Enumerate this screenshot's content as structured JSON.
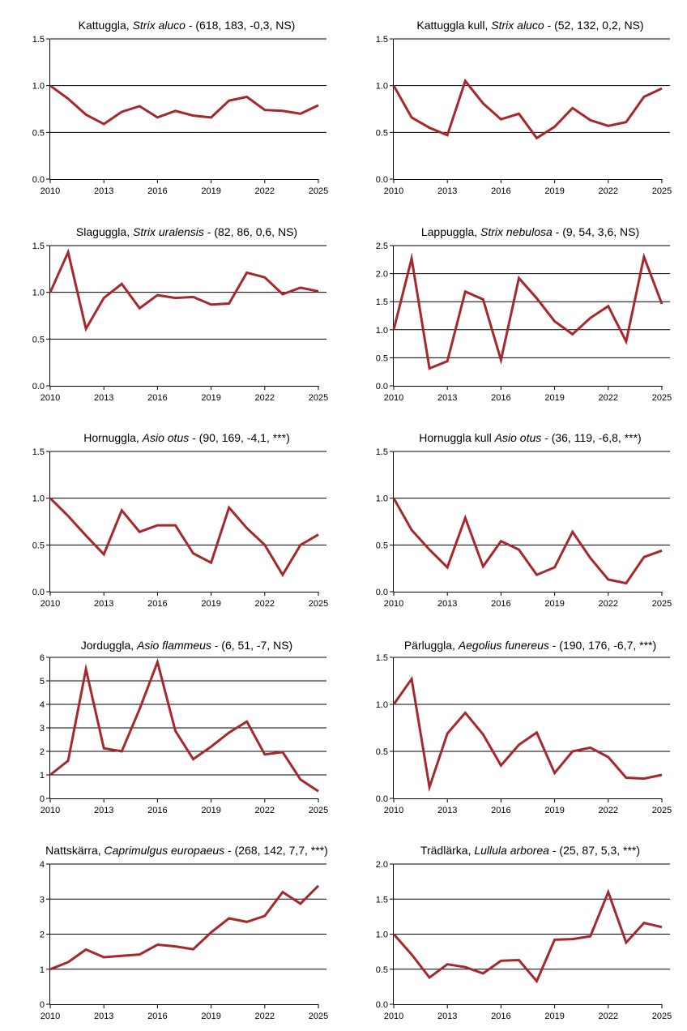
{
  "colors": {
    "line": "#a5282d",
    "grid": "#000000",
    "axis": "#000000"
  },
  "chart_data": [
    {
      "type": "line",
      "title_prefix": "Kattuggla, ",
      "title_italic": "Strix aluco",
      "title_suffix": " - (618, 183, -0,3, NS)",
      "x": [
        2010,
        2011,
        2012,
        2013,
        2014,
        2015,
        2016,
        2017,
        2018,
        2019,
        2020,
        2021,
        2022,
        2023,
        2024,
        2025
      ],
      "values": [
        1.0,
        0.86,
        0.69,
        0.59,
        0.72,
        0.78,
        0.66,
        0.73,
        0.68,
        0.66,
        0.84,
        0.88,
        0.74,
        0.73,
        0.7,
        0.79
      ],
      "ylim": [
        0,
        1.5
      ],
      "yticks": [
        0,
        0.5,
        1.0,
        1.5
      ],
      "yticklabels": [
        "0.0",
        "0.5",
        "1.0",
        "1.5"
      ],
      "xticks": [
        2010,
        2013,
        2016,
        2019,
        2022,
        2025
      ],
      "xticklabels": [
        "2010",
        "2013",
        "2016",
        "2019",
        "2022",
        "2025"
      ]
    },
    {
      "type": "line",
      "title_prefix": "Kattuggla kull, ",
      "title_italic": "Strix aluco",
      "title_suffix": " - (52, 132, 0,2, NS)",
      "x": [
        2010,
        2011,
        2012,
        2013,
        2014,
        2015,
        2016,
        2017,
        2018,
        2019,
        2020,
        2021,
        2022,
        2023,
        2024,
        2025
      ],
      "values": [
        1.0,
        0.66,
        0.55,
        0.47,
        1.05,
        0.81,
        0.64,
        0.7,
        0.44,
        0.56,
        0.76,
        0.63,
        0.57,
        0.61,
        0.88,
        0.97
      ],
      "ylim": [
        0,
        1.5
      ],
      "yticks": [
        0,
        0.5,
        1.0,
        1.5
      ],
      "yticklabels": [
        "0.0",
        "0.5",
        "1.0",
        "1.5"
      ],
      "xticks": [
        2010,
        2013,
        2016,
        2019,
        2022,
        2025
      ],
      "xticklabels": [
        "2010",
        "2013",
        "2016",
        "2019",
        "2022",
        "2025"
      ]
    },
    {
      "type": "line",
      "title_prefix": "Slaguggla, ",
      "title_italic": "Strix uralensis",
      "title_suffix": " - (82, 86, 0,6, NS)",
      "x": [
        2010,
        2011,
        2012,
        2013,
        2014,
        2015,
        2016,
        2017,
        2018,
        2019,
        2020,
        2021,
        2022,
        2023,
        2024,
        2025
      ],
      "values": [
        1.0,
        1.43,
        0.61,
        0.94,
        1.09,
        0.83,
        0.97,
        0.94,
        0.95,
        0.87,
        0.88,
        1.21,
        1.16,
        0.98,
        1.05,
        1.01
      ],
      "ylim": [
        0,
        1.5
      ],
      "yticks": [
        0,
        0.5,
        1.0,
        1.5
      ],
      "yticklabels": [
        "0.0",
        "0.5",
        "1.0",
        "1.5"
      ],
      "xticks": [
        2010,
        2013,
        2016,
        2019,
        2022,
        2025
      ],
      "xticklabels": [
        "2010",
        "2013",
        "2016",
        "2019",
        "2022",
        "2025"
      ]
    },
    {
      "type": "line",
      "title_prefix": "Lappuggla, ",
      "title_italic": "Strix nebulosa",
      "title_suffix": " - (9, 54, 3,6, NS)",
      "x": [
        2010,
        2011,
        2012,
        2013,
        2014,
        2015,
        2016,
        2017,
        2018,
        2019,
        2020,
        2021,
        2022,
        2023,
        2024,
        2025
      ],
      "values": [
        1.0,
        2.27,
        0.31,
        0.44,
        1.68,
        1.54,
        0.46,
        1.92,
        1.56,
        1.15,
        0.92,
        1.21,
        1.42,
        0.79,
        2.3,
        1.46
      ],
      "ylim": [
        0,
        2.5
      ],
      "yticks": [
        0,
        0.5,
        1.0,
        1.5,
        2.0,
        2.5
      ],
      "yticklabels": [
        "0.0",
        "0.5",
        "1.0",
        "1.5",
        "2.0",
        "2.5"
      ],
      "xticks": [
        2010,
        2013,
        2016,
        2019,
        2022,
        2025
      ],
      "xticklabels": [
        "2010",
        "2013",
        "2016",
        "2019",
        "2022",
        "2025"
      ]
    },
    {
      "type": "line",
      "title_prefix": "Hornuggla, ",
      "title_italic": "Asio otus",
      "title_suffix": " - (90, 169, -4,1, ***)",
      "x": [
        2010,
        2011,
        2012,
        2013,
        2014,
        2015,
        2016,
        2017,
        2018,
        2019,
        2020,
        2021,
        2022,
        2023,
        2024,
        2025
      ],
      "values": [
        1.0,
        0.81,
        0.6,
        0.4,
        0.87,
        0.64,
        0.71,
        0.71,
        0.41,
        0.31,
        0.9,
        0.68,
        0.5,
        0.18,
        0.5,
        0.61
      ],
      "ylim": [
        0,
        1.5
      ],
      "yticks": [
        0,
        0.5,
        1.0,
        1.5
      ],
      "yticklabels": [
        "0.0",
        "0.5",
        "1.0",
        "1.5"
      ],
      "xticks": [
        2010,
        2013,
        2016,
        2019,
        2022,
        2025
      ],
      "xticklabels": [
        "2010",
        "2013",
        "2016",
        "2019",
        "2022",
        "2025"
      ]
    },
    {
      "type": "line",
      "title_prefix": "Hornuggla kull ",
      "title_italic": "Asio otus",
      "title_suffix": " - (36, 119, -6,8, ***)",
      "x": [
        2010,
        2011,
        2012,
        2013,
        2014,
        2015,
        2016,
        2017,
        2018,
        2019,
        2020,
        2021,
        2022,
        2023,
        2024,
        2025
      ],
      "values": [
        1.0,
        0.66,
        0.45,
        0.26,
        0.79,
        0.27,
        0.54,
        0.45,
        0.18,
        0.26,
        0.64,
        0.36,
        0.13,
        0.09,
        0.37,
        0.44
      ],
      "ylim": [
        0,
        1.5
      ],
      "yticks": [
        0,
        0.5,
        1.0,
        1.5
      ],
      "yticklabels": [
        "0.0",
        "0.5",
        "1.0",
        "1.5"
      ],
      "xticks": [
        2010,
        2013,
        2016,
        2019,
        2022,
        2025
      ],
      "xticklabels": [
        "2010",
        "2013",
        "2016",
        "2019",
        "2022",
        "2025"
      ]
    },
    {
      "type": "line",
      "title_prefix": "Jorduggla, ",
      "title_italic": "Asio flammeus",
      "title_suffix": " - (6, 51, -7, NS)",
      "x": [
        2010,
        2011,
        2012,
        2013,
        2014,
        2015,
        2016,
        2017,
        2018,
        2019,
        2020,
        2021,
        2022,
        2023,
        2024,
        2025
      ],
      "values": [
        1.0,
        1.6,
        5.5,
        2.13,
        2.0,
        3.8,
        5.8,
        2.87,
        1.67,
        2.2,
        2.8,
        3.27,
        1.87,
        1.97,
        0.8,
        0.3
      ],
      "ylim": [
        0,
        6
      ],
      "yticks": [
        0,
        1,
        2,
        3,
        4,
        5,
        6
      ],
      "yticklabels": [
        "0",
        "1",
        "2",
        "3",
        "4",
        "5",
        "6"
      ],
      "xticks": [
        2010,
        2013,
        2016,
        2019,
        2022,
        2025
      ],
      "xticklabels": [
        "2010",
        "2013",
        "2016",
        "2019",
        "2022",
        "2025"
      ]
    },
    {
      "type": "line",
      "title_prefix": "Pärluggla, ",
      "title_italic": "Aegolius funereus",
      "title_suffix": " - (190, 176, -6,7, ***)",
      "x": [
        2010,
        2011,
        2012,
        2013,
        2014,
        2015,
        2016,
        2017,
        2018,
        2019,
        2020,
        2021,
        2022,
        2023,
        2024,
        2025
      ],
      "values": [
        1.0,
        1.27,
        0.12,
        0.69,
        0.91,
        0.68,
        0.35,
        0.57,
        0.7,
        0.27,
        0.5,
        0.54,
        0.44,
        0.22,
        0.21,
        0.25
      ],
      "ylim": [
        0,
        1.5
      ],
      "yticks": [
        0,
        0.5,
        1.0,
        1.5
      ],
      "yticklabels": [
        "0.0",
        "0.5",
        "1.0",
        "1.5"
      ],
      "xticks": [
        2010,
        2013,
        2016,
        2019,
        2022,
        2025
      ],
      "xticklabels": [
        "2010",
        "2013",
        "2016",
        "2019",
        "2022",
        "2025"
      ]
    },
    {
      "type": "line",
      "title_prefix": "Nattskärra, ",
      "title_italic": "Caprimulgus europaeus",
      "title_suffix": " - (268, 142, 7,7, ***)",
      "x": [
        2010,
        2011,
        2012,
        2013,
        2014,
        2015,
        2016,
        2017,
        2018,
        2019,
        2020,
        2021,
        2022,
        2023,
        2024,
        2025
      ],
      "values": [
        1.0,
        1.2,
        1.56,
        1.34,
        1.38,
        1.42,
        1.7,
        1.65,
        1.57,
        2.05,
        2.45,
        2.35,
        2.52,
        3.2,
        2.87,
        3.38
      ],
      "ylim": [
        0,
        4
      ],
      "yticks": [
        0,
        1,
        2,
        3,
        4
      ],
      "yticklabels": [
        "0",
        "1",
        "2",
        "3",
        "4"
      ],
      "xticks": [
        2010,
        2013,
        2016,
        2019,
        2022,
        2025
      ],
      "xticklabels": [
        "2010",
        "2013",
        "2016",
        "2019",
        "2022",
        "2025"
      ]
    },
    {
      "type": "line",
      "title_prefix": "Trädlärka, ",
      "title_italic": "Lullula arborea",
      "title_suffix": " - (25, 87, 5,3, ***)",
      "x": [
        2010,
        2011,
        2012,
        2013,
        2014,
        2015,
        2016,
        2017,
        2018,
        2019,
        2020,
        2021,
        2022,
        2023,
        2024,
        2025
      ],
      "values": [
        1.0,
        0.71,
        0.38,
        0.57,
        0.53,
        0.44,
        0.62,
        0.63,
        0.33,
        0.92,
        0.93,
        0.97,
        1.6,
        0.88,
        1.16,
        1.1
      ],
      "ylim": [
        0,
        2.0
      ],
      "yticks": [
        0,
        0.5,
        1.0,
        1.5,
        2.0
      ],
      "yticklabels": [
        "0.0",
        "0.5",
        "1.0",
        "1.5",
        "2.0"
      ],
      "xticks": [
        2010,
        2013,
        2016,
        2019,
        2022,
        2025
      ],
      "xticklabels": [
        "2010",
        "2013",
        "2016",
        "2019",
        "2022",
        "2025"
      ]
    }
  ]
}
